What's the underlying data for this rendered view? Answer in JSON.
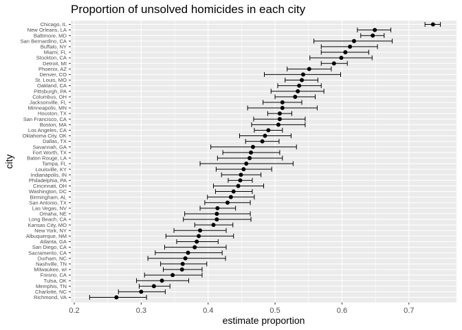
{
  "chart_data": {
    "type": "scatter",
    "title": "Proportion of unsolved homicides in each city",
    "xlabel": "estimate proportion",
    "ylabel": "city",
    "xlim": [
      0.2,
      0.7
    ],
    "xticks": [
      0.2,
      0.3,
      0.4,
      0.5,
      0.6,
      0.7
    ],
    "xtick_labels": [
      "0.2",
      "0.3",
      "0.4",
      "0.5",
      "0.6",
      "0.7"
    ],
    "grid": true,
    "background": "#ebebeb",
    "error_bars": true,
    "points": [
      {
        "city": "Chicago, IL",
        "estimate": 0.736,
        "low": 0.724,
        "high": 0.747
      },
      {
        "city": "New Orleans, LA",
        "estimate": 0.649,
        "low": 0.623,
        "high": 0.673
      },
      {
        "city": "Baltimore, MD",
        "estimate": 0.646,
        "low": 0.628,
        "high": 0.663
      },
      {
        "city": "San Bernardino, CA",
        "estimate": 0.618,
        "low": 0.558,
        "high": 0.675
      },
      {
        "city": "Buffalo, NY",
        "estimate": 0.612,
        "low": 0.569,
        "high": 0.653
      },
      {
        "city": "Miami, FL",
        "estimate": 0.605,
        "low": 0.569,
        "high": 0.64
      },
      {
        "city": "Stockton, CA",
        "estimate": 0.599,
        "low": 0.552,
        "high": 0.645
      },
      {
        "city": "Detroit, MI",
        "estimate": 0.588,
        "low": 0.569,
        "high": 0.608
      },
      {
        "city": "Phoenix, AZ",
        "estimate": 0.551,
        "low": 0.518,
        "high": 0.584
      },
      {
        "city": "Denver, CO",
        "estimate": 0.542,
        "low": 0.484,
        "high": 0.598
      },
      {
        "city": "St. Louis, MO",
        "estimate": 0.54,
        "low": 0.515,
        "high": 0.564
      },
      {
        "city": "Oakland, CA",
        "estimate": 0.536,
        "low": 0.504,
        "high": 0.569
      },
      {
        "city": "Pittsburgh, PA",
        "estimate": 0.534,
        "low": 0.494,
        "high": 0.573
      },
      {
        "city": "Columbus, OH",
        "estimate": 0.53,
        "low": 0.5,
        "high": 0.56
      },
      {
        "city": "Jacksonville, FL",
        "estimate": 0.511,
        "low": 0.482,
        "high": 0.54
      },
      {
        "city": "Minneapolis, MN",
        "estimate": 0.511,
        "low": 0.459,
        "high": 0.563
      },
      {
        "city": "Houston, TX",
        "estimate": 0.507,
        "low": 0.489,
        "high": 0.525
      },
      {
        "city": "San Francisco, CA",
        "estimate": 0.507,
        "low": 0.468,
        "high": 0.545
      },
      {
        "city": "Boston, MA",
        "estimate": 0.505,
        "low": 0.465,
        "high": 0.545
      },
      {
        "city": "Los Angeles, CA",
        "estimate": 0.49,
        "low": 0.469,
        "high": 0.511
      },
      {
        "city": "Oklahoma City, OK",
        "estimate": 0.485,
        "low": 0.447,
        "high": 0.524
      },
      {
        "city": "Dallas, TX",
        "estimate": 0.481,
        "low": 0.456,
        "high": 0.506
      },
      {
        "city": "Savannah, GA",
        "estimate": 0.467,
        "low": 0.404,
        "high": 0.532
      },
      {
        "city": "Fort Worth, TX",
        "estimate": 0.464,
        "low": 0.422,
        "high": 0.507
      },
      {
        "city": "Baton Rouge, LA",
        "estimate": 0.462,
        "low": 0.414,
        "high": 0.511
      },
      {
        "city": "Tampa, FL",
        "estimate": 0.457,
        "low": 0.388,
        "high": 0.527
      },
      {
        "city": "Louisville, KY",
        "estimate": 0.453,
        "low": 0.412,
        "high": 0.495
      },
      {
        "city": "Indianapolis, IN",
        "estimate": 0.449,
        "low": 0.42,
        "high": 0.479
      },
      {
        "city": "Philadelphia, PA",
        "estimate": 0.448,
        "low": 0.43,
        "high": 0.466
      },
      {
        "city": "Cincinnati, OH",
        "estimate": 0.445,
        "low": 0.408,
        "high": 0.483
      },
      {
        "city": "Washington, DC",
        "estimate": 0.438,
        "low": 0.411,
        "high": 0.466
      },
      {
        "city": "Birmingham, AL",
        "estimate": 0.434,
        "low": 0.399,
        "high": 0.469
      },
      {
        "city": "San Antonio, TX",
        "estimate": 0.429,
        "low": 0.395,
        "high": 0.463
      },
      {
        "city": "Las Vegas, NV",
        "estimate": 0.414,
        "low": 0.388,
        "high": 0.441
      },
      {
        "city": "Omaha, NE",
        "estimate": 0.413,
        "low": 0.365,
        "high": 0.463
      },
      {
        "city": "Long Beach, CA",
        "estimate": 0.413,
        "low": 0.363,
        "high": 0.464
      },
      {
        "city": "Kansas City, MO",
        "estimate": 0.408,
        "low": 0.38,
        "high": 0.437
      },
      {
        "city": "New York, NY",
        "estimate": 0.388,
        "low": 0.349,
        "high": 0.427
      },
      {
        "city": "Albuquerque, NM",
        "estimate": 0.386,
        "low": 0.337,
        "high": 0.438
      },
      {
        "city": "Atlanta, GA",
        "estimate": 0.383,
        "low": 0.353,
        "high": 0.415
      },
      {
        "city": "San Diego, CA",
        "estimate": 0.38,
        "low": 0.335,
        "high": 0.427
      },
      {
        "city": "Sacramento, CA",
        "estimate": 0.37,
        "low": 0.321,
        "high": 0.421
      },
      {
        "city": "Durham, NC",
        "estimate": 0.366,
        "low": 0.31,
        "high": 0.426
      },
      {
        "city": "Nashville, TN",
        "estimate": 0.362,
        "low": 0.329,
        "high": 0.398
      },
      {
        "city": "Milwaukee, wI",
        "estimate": 0.361,
        "low": 0.333,
        "high": 0.391
      },
      {
        "city": "Fresno, CA",
        "estimate": 0.347,
        "low": 0.305,
        "high": 0.391
      },
      {
        "city": "Tulsa, OK",
        "estimate": 0.331,
        "low": 0.293,
        "high": 0.371
      },
      {
        "city": "Memphis, TN",
        "estimate": 0.319,
        "low": 0.297,
        "high": 0.343
      },
      {
        "city": "Charlotte, NC",
        "estimate": 0.3,
        "low": 0.266,
        "high": 0.336
      },
      {
        "city": "Richmond, VA",
        "estimate": 0.263,
        "low": 0.223,
        "high": 0.308
      }
    ]
  }
}
